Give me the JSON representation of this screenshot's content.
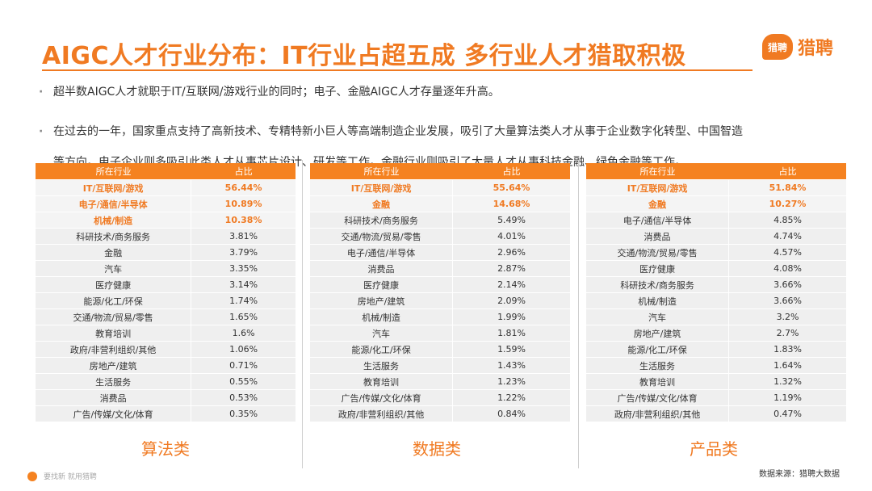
{
  "title": "AIGC人才行业分布：IT行业占超五成 多行业人才猎取积极",
  "logo": {
    "badge": "猎聘",
    "text": "猎聘"
  },
  "bullets": {
    "b1": "超半数AIGC人才就职于IT/互联网/游戏行业的同时；电子、金融AIGC人才存量逐年升高。",
    "b2_line1": "在过去的一年，国家重点支持了高新技术、专精特新小巨人等高端制造企业发展，吸引了大量算法类人才从事于企业数字化转型、中国智造",
    "b2_line2": "等方向。电子企业则多吸引此类人才从事芯片设计、研发等工作。金融行业则吸引了大量人才从事科技金融、绿色金融等工作。"
  },
  "tables": [
    {
      "caption": "算法类",
      "headers": [
        "所在行业",
        "占比"
      ],
      "rows": [
        [
          "IT/互联网/游戏",
          "56.44%"
        ],
        [
          "电子/通信/半导体",
          "10.89%"
        ],
        [
          "机械/制造",
          "10.38%"
        ],
        [
          "科研技术/商务服务",
          "3.81%"
        ],
        [
          "金融",
          "3.79%"
        ],
        [
          "汽车",
          "3.35%"
        ],
        [
          "医疗健康",
          "3.14%"
        ],
        [
          "能源/化工/环保",
          "1.74%"
        ],
        [
          "交通/物流/贸易/零售",
          "1.65%"
        ],
        [
          "教育培训",
          "1.6%"
        ],
        [
          "政府/非营利组织/其他",
          "1.06%"
        ],
        [
          "房地产/建筑",
          "0.71%"
        ],
        [
          "生活服务",
          "0.55%"
        ],
        [
          "消费品",
          "0.53%"
        ],
        [
          "广告/传媒/文化/体育",
          "0.35%"
        ]
      ],
      "highlight_count": 3
    },
    {
      "caption": "数据类",
      "headers": [
        "所在行业",
        "占比"
      ],
      "rows": [
        [
          "IT/互联网/游戏",
          "55.64%"
        ],
        [
          "金融",
          "14.68%"
        ],
        [
          "科研技术/商务服务",
          "5.49%"
        ],
        [
          "交通/物流/贸易/零售",
          "4.01%"
        ],
        [
          "电子/通信/半导体",
          "2.96%"
        ],
        [
          "消费品",
          "2.87%"
        ],
        [
          "医疗健康",
          "2.14%"
        ],
        [
          "房地产/建筑",
          "2.09%"
        ],
        [
          "机械/制造",
          "1.99%"
        ],
        [
          "汽车",
          "1.81%"
        ],
        [
          "能源/化工/环保",
          "1.59%"
        ],
        [
          "生活服务",
          "1.43%"
        ],
        [
          "教育培训",
          "1.23%"
        ],
        [
          "广告/传媒/文化/体育",
          "1.22%"
        ],
        [
          "政府/非营利组织/其他",
          "0.84%"
        ]
      ],
      "highlight_count": 2
    },
    {
      "caption": "产品类",
      "headers": [
        "所在行业",
        "占比"
      ],
      "rows": [
        [
          "IT/互联网/游戏",
          "51.84%"
        ],
        [
          "金融",
          "10.27%"
        ],
        [
          "电子/通信/半导体",
          "4.85%"
        ],
        [
          "消费品",
          "4.74%"
        ],
        [
          "交通/物流/贸易/零售",
          "4.57%"
        ],
        [
          "医疗健康",
          "4.08%"
        ],
        [
          "科研技术/商务服务",
          "3.66%"
        ],
        [
          "机械/制造",
          "3.66%"
        ],
        [
          "汽车",
          "3.2%"
        ],
        [
          "房地产/建筑",
          "2.7%"
        ],
        [
          "能源/化工/环保",
          "1.83%"
        ],
        [
          "生活服务",
          "1.64%"
        ],
        [
          "教育培训",
          "1.32%"
        ],
        [
          "广告/传媒/文化/体育",
          "1.19%"
        ],
        [
          "政府/非营利组织/其他",
          "0.47%"
        ]
      ],
      "highlight_count": 2
    }
  ],
  "footer": {
    "left": "要找新 就用猎聘",
    "right": "数据来源：猎聘大数据"
  },
  "colors": {
    "accent": "#F07A22",
    "header_bg": "#F58220",
    "row_bg": "#EFEFEF"
  }
}
